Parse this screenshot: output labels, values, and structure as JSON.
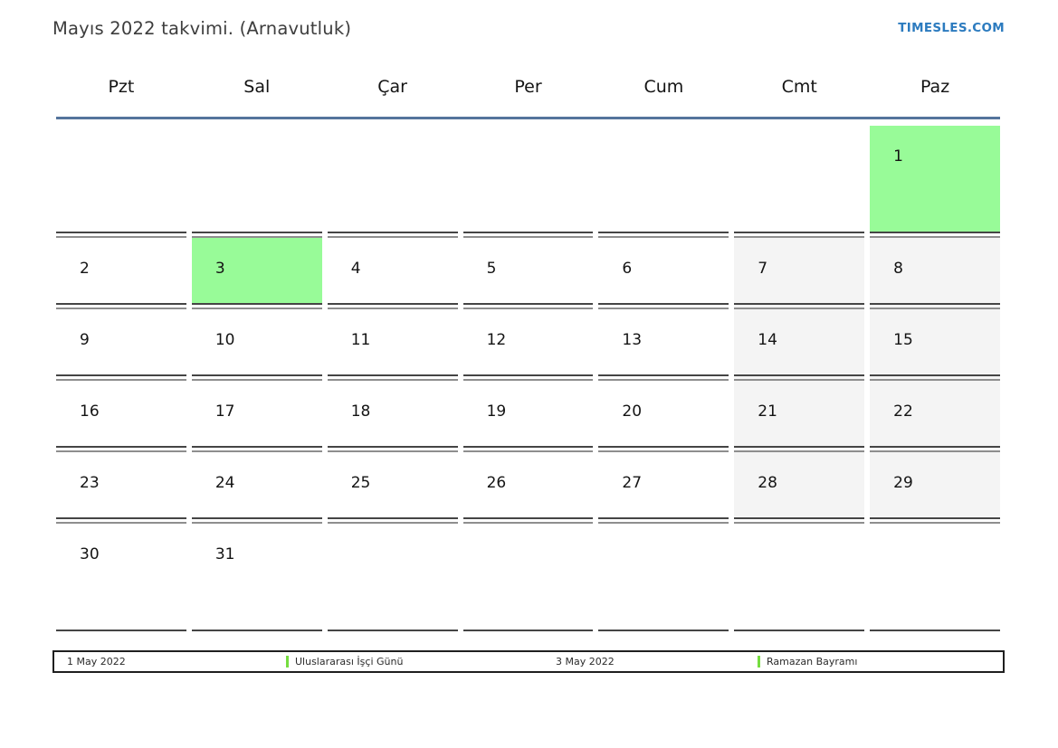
{
  "page": {
    "title": "Mayıs 2022 takvimi. (Arnavutluk)",
    "brand": "TIMESLES.COM"
  },
  "weekdays": [
    "Pzt",
    "Sal",
    "Çar",
    "Per",
    "Cum",
    "Cmt",
    "Paz"
  ],
  "weeks": [
    [
      {
        "day": "",
        "type": ""
      },
      {
        "day": "",
        "type": ""
      },
      {
        "day": "",
        "type": ""
      },
      {
        "day": "",
        "type": ""
      },
      {
        "day": "",
        "type": ""
      },
      {
        "day": "",
        "type": ""
      },
      {
        "day": "1",
        "type": "holiday"
      }
    ],
    [
      {
        "day": "2",
        "type": ""
      },
      {
        "day": "3",
        "type": "holiday"
      },
      {
        "day": "4",
        "type": ""
      },
      {
        "day": "5",
        "type": ""
      },
      {
        "day": "6",
        "type": ""
      },
      {
        "day": "7",
        "type": "weekend"
      },
      {
        "day": "8",
        "type": "weekend"
      }
    ],
    [
      {
        "day": "9",
        "type": ""
      },
      {
        "day": "10",
        "type": ""
      },
      {
        "day": "11",
        "type": ""
      },
      {
        "day": "12",
        "type": ""
      },
      {
        "day": "13",
        "type": ""
      },
      {
        "day": "14",
        "type": "weekend"
      },
      {
        "day": "15",
        "type": "weekend"
      }
    ],
    [
      {
        "day": "16",
        "type": ""
      },
      {
        "day": "17",
        "type": ""
      },
      {
        "day": "18",
        "type": ""
      },
      {
        "day": "19",
        "type": ""
      },
      {
        "day": "20",
        "type": ""
      },
      {
        "day": "21",
        "type": "weekend"
      },
      {
        "day": "22",
        "type": "weekend"
      }
    ],
    [
      {
        "day": "23",
        "type": ""
      },
      {
        "day": "24",
        "type": ""
      },
      {
        "day": "25",
        "type": ""
      },
      {
        "day": "26",
        "type": ""
      },
      {
        "day": "27",
        "type": ""
      },
      {
        "day": "28",
        "type": "weekend"
      },
      {
        "day": "29",
        "type": "weekend"
      }
    ],
    [
      {
        "day": "30",
        "type": ""
      },
      {
        "day": "31",
        "type": ""
      },
      {
        "day": "",
        "type": ""
      },
      {
        "day": "",
        "type": ""
      },
      {
        "day": "",
        "type": ""
      },
      {
        "day": "",
        "type": ""
      },
      {
        "day": "",
        "type": ""
      }
    ]
  ],
  "legend": {
    "items": [
      {
        "text": "1 May 2022",
        "marker": false
      },
      {
        "text": "Uluslararası İşçi Günü",
        "marker": true
      },
      {
        "text": "3 May 2022",
        "marker": false
      },
      {
        "text": "Ramazan Bayramı",
        "marker": true
      }
    ]
  },
  "colors": {
    "holiday": "#98fb98",
    "weekend": "#f4f4f4",
    "accent_line": "#54749c",
    "brand": "#2c7bbf",
    "legend_marker": "#76dd40"
  }
}
